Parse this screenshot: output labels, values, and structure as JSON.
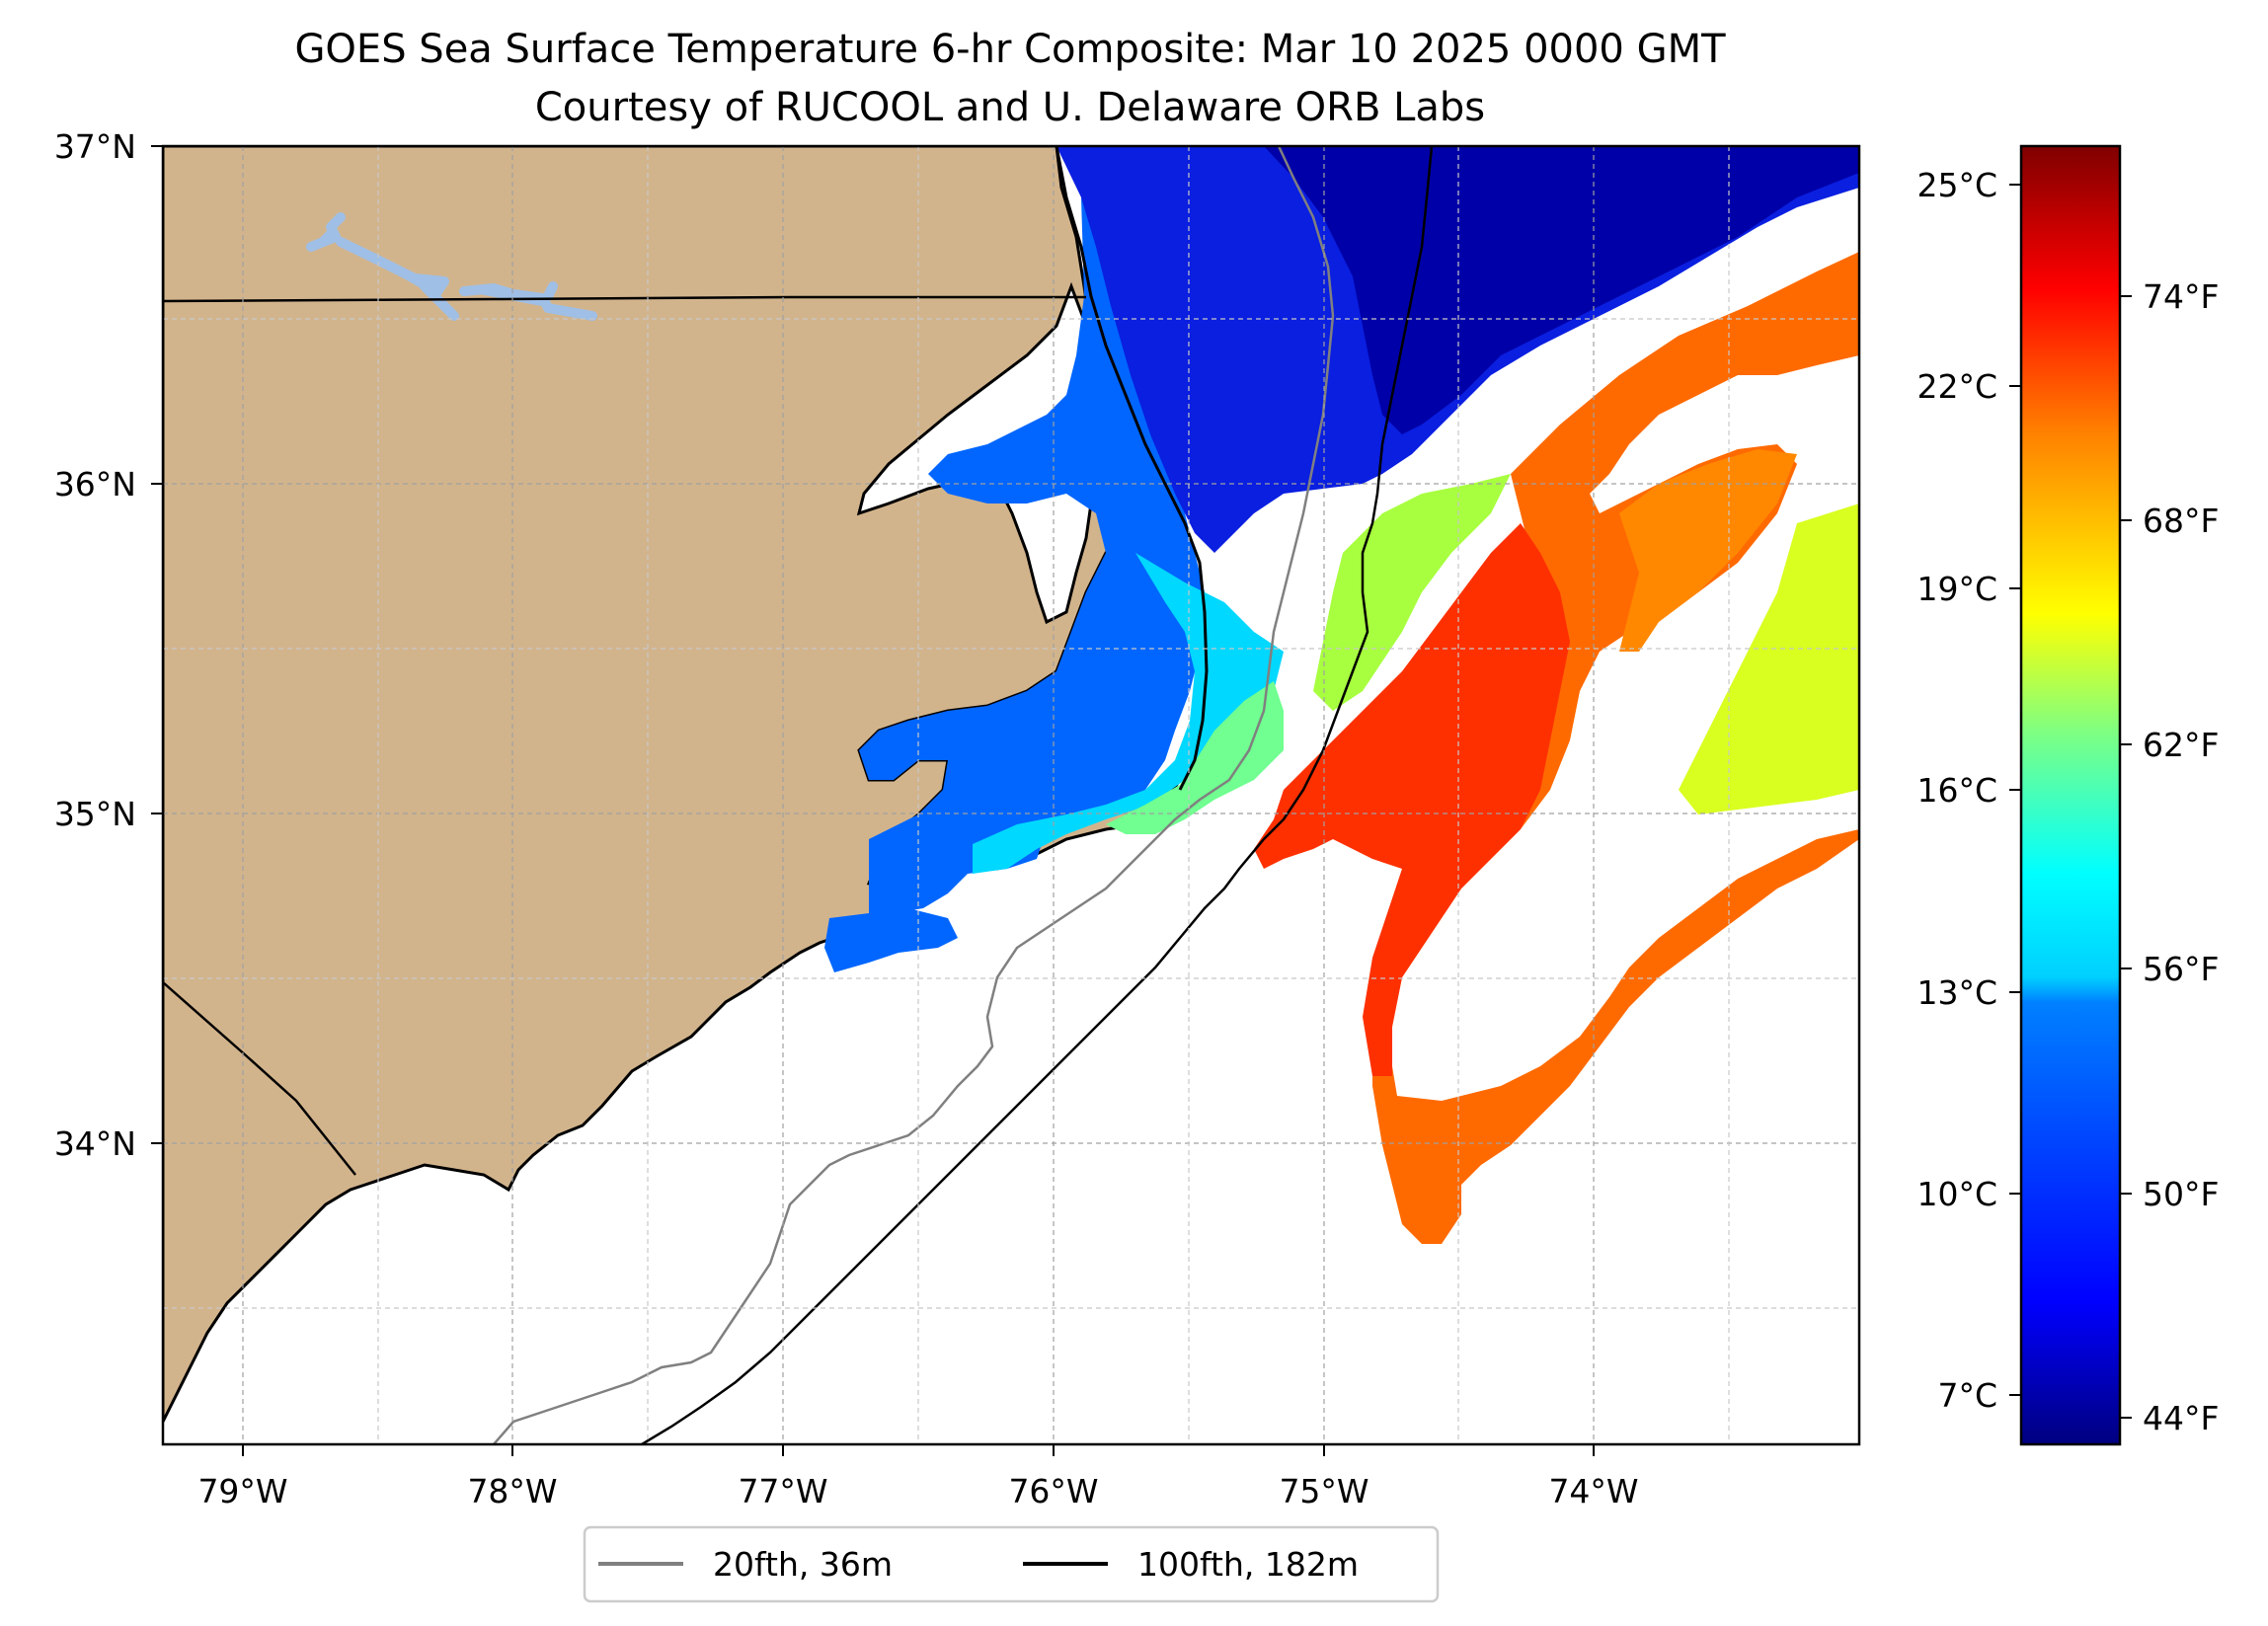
{
  "title": "GOES Sea Surface Temperature 6-hr Composite: Mar 10 2025 0000 GMT",
  "subtitle": "Courtesy of RUCOOL and U. Delaware ORB Labs",
  "map": {
    "lon_ticks": [
      "79°W",
      "78°W",
      "77°W",
      "76°W",
      "75°W",
      "74°W"
    ],
    "lat_ticks": [
      "37°N",
      "36°N",
      "35°N",
      "34°N"
    ],
    "colors": {
      "land": "#d2b48c",
      "ocean_no_data": "#ffffff",
      "lakes": "#9fbfe6",
      "contour_20fth": "#808080",
      "contour_100fth": "#000000",
      "coastline": "#000000"
    },
    "grid": "on, dashed"
  },
  "colorbar": {
    "celsius_ticks": [
      "25°C",
      "22°C",
      "19°C",
      "16°C",
      "13°C",
      "10°C",
      "7°C"
    ],
    "fahrenheit_ticks": [
      "74°F",
      "68°F",
      "62°F",
      "56°F",
      "50°F",
      "44°F"
    ],
    "colormap": "jet",
    "colormap_stops": [
      "#000080",
      "#0000ff",
      "#0080ff",
      "#00ffff",
      "#80ff80",
      "#ffff00",
      "#ff8000",
      "#ff0000",
      "#800000"
    ]
  },
  "legend": {
    "items": [
      {
        "label": "20fth, 36m",
        "color": "#808080"
      },
      {
        "label": "100fth, 182m",
        "color": "#000000"
      }
    ]
  }
}
